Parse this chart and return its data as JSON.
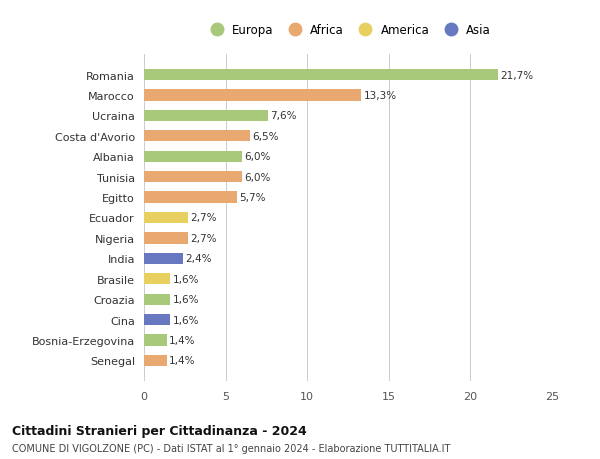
{
  "countries": [
    "Romania",
    "Marocco",
    "Ucraina",
    "Costa d'Avorio",
    "Albania",
    "Tunisia",
    "Egitto",
    "Ecuador",
    "Nigeria",
    "India",
    "Brasile",
    "Croazia",
    "Cina",
    "Bosnia-Erzegovina",
    "Senegal"
  ],
  "values": [
    21.7,
    13.3,
    7.6,
    6.5,
    6.0,
    6.0,
    5.7,
    2.7,
    2.7,
    2.4,
    1.6,
    1.6,
    1.6,
    1.4,
    1.4
  ],
  "labels": [
    "21,7%",
    "13,3%",
    "7,6%",
    "6,5%",
    "6,0%",
    "6,0%",
    "5,7%",
    "2,7%",
    "2,7%",
    "2,4%",
    "1,6%",
    "1,6%",
    "1,6%",
    "1,4%",
    "1,4%"
  ],
  "regions": [
    "Europa",
    "Africa",
    "Europa",
    "Africa",
    "Europa",
    "Africa",
    "Africa",
    "America",
    "Africa",
    "Asia",
    "America",
    "Europa",
    "Asia",
    "Europa",
    "Africa"
  ],
  "colors": {
    "Europa": "#a8c87a",
    "Africa": "#e8a870",
    "America": "#e8d060",
    "Asia": "#6878c0"
  },
  "legend_order": [
    "Europa",
    "Africa",
    "America",
    "Asia"
  ],
  "title": "Cittadini Stranieri per Cittadinanza - 2024",
  "subtitle": "COMUNE DI VIGOLZONE (PC) - Dati ISTAT al 1° gennaio 2024 - Elaborazione TUTTITALIA.IT",
  "xlim": [
    0,
    25
  ],
  "xticks": [
    0,
    5,
    10,
    15,
    20,
    25
  ],
  "background_color": "#ffffff",
  "grid_color": "#cccccc"
}
